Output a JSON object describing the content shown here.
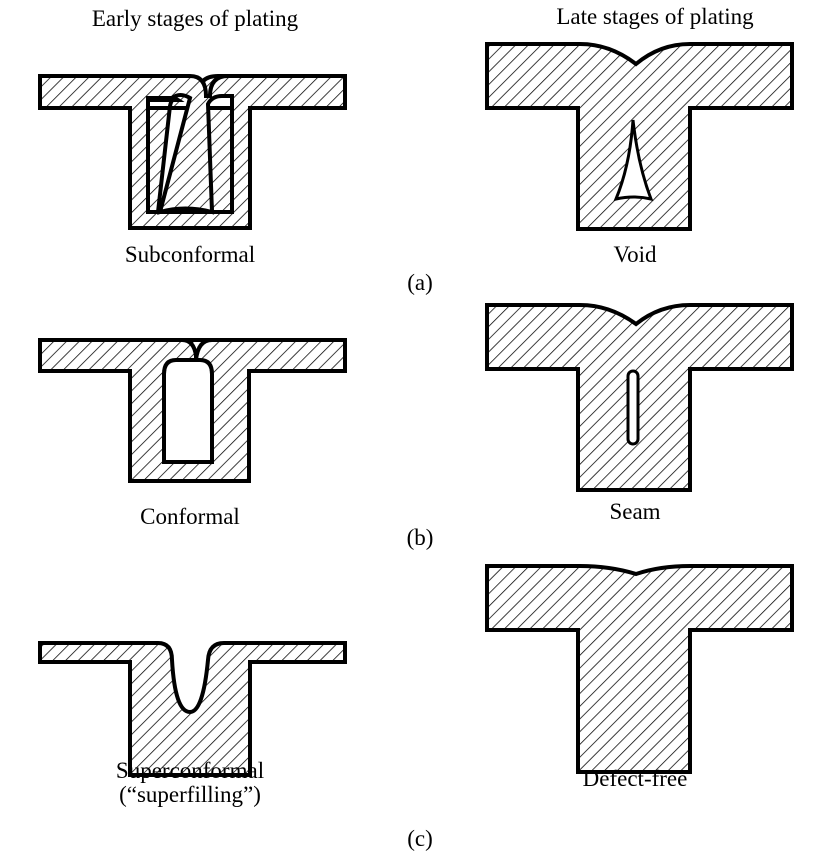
{
  "headers": {
    "early": "Early stages of plating",
    "late": "Late stages of plating"
  },
  "rows": [
    {
      "marker": "(a)",
      "early_label": "Subconformal",
      "late_label": "Void"
    },
    {
      "marker": "(b)",
      "early_label": "Conformal",
      "late_label": "Seam"
    },
    {
      "marker": "(c)",
      "early_label": "Superconformal",
      "early_label_line2": "(“superfilling”)",
      "late_label": "Defect-free"
    }
  ]
}
